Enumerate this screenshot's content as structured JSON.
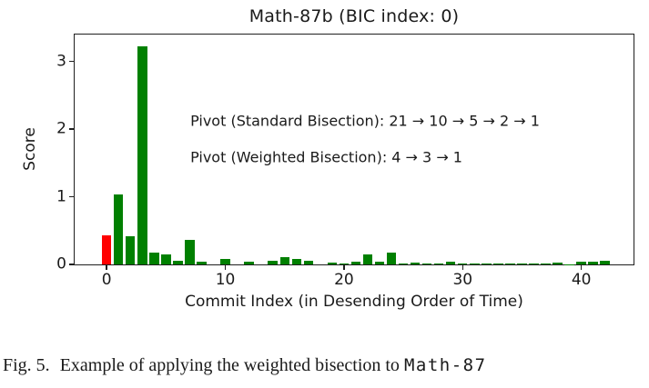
{
  "chart_data": {
    "type": "bar",
    "title": "Math-87b (BIC index: 0)",
    "xlabel": "Commit Index (in Desending Order of Time)",
    "ylabel": "Score",
    "xlim": [
      -2.7,
      44.4
    ],
    "ylim": [
      0,
      3.4
    ],
    "xticks": [
      0,
      10,
      20,
      30,
      40
    ],
    "yticks": [
      0,
      1,
      2,
      3
    ],
    "grid": false,
    "legend": null,
    "bar_width": 0.8,
    "bar_color": "#008000",
    "highlight_color": "#ff0000",
    "highlight_index": 0,
    "x": [
      0,
      1,
      2,
      3,
      4,
      5,
      6,
      7,
      8,
      9,
      10,
      11,
      12,
      13,
      14,
      15,
      16,
      17,
      18,
      19,
      20,
      21,
      22,
      23,
      24,
      25,
      26,
      27,
      28,
      29,
      30,
      31,
      32,
      33,
      34,
      35,
      36,
      37,
      38,
      39,
      40,
      41,
      42
    ],
    "values": [
      0.43,
      1.03,
      0.42,
      3.23,
      0.18,
      0.15,
      0.05,
      0.36,
      0.04,
      0,
      0.08,
      0,
      0.04,
      0,
      0.06,
      0.11,
      0.08,
      0.06,
      0,
      0.03,
      0.02,
      0.04,
      0.15,
      0.04,
      0.17,
      0.01,
      0.03,
      0.01,
      0.01,
      0.04,
      0.01,
      0.015,
      0.015,
      0.015,
      0.015,
      0.015,
      0.015,
      0.015,
      0.03,
      0.005,
      0.045,
      0.045,
      0.05
    ],
    "annotations": [
      {
        "x": 7.05,
        "y": 2.12,
        "text": "Pivot (Standard Bisection): 21 → 10 → 5 → 2 → 1"
      },
      {
        "x": 7.05,
        "y": 1.59,
        "text": "Pivot (Weighted Bisection): 4 → 3 → 1"
      }
    ]
  },
  "caption": {
    "label": "Fig. 5.",
    "text": "Example of applying the weighted bisection to",
    "code": "Math-87"
  }
}
